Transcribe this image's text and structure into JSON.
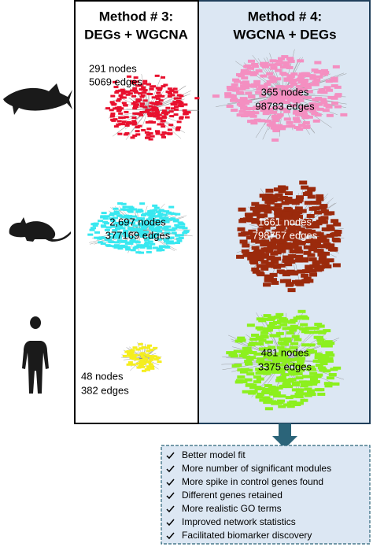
{
  "columns": [
    {
      "title_line1": "Method # 3:",
      "title_line2": "DEGs + WGCNA",
      "networks": [
        {
          "nodes": "291 nodes",
          "edges": "5069 edges"
        },
        {
          "nodes": "2,697 nodes",
          "edges": "377169 edges"
        },
        {
          "nodes": "48 nodes",
          "edges": "382 edges"
        }
      ]
    },
    {
      "title_line1": "Method # 4:",
      "title_line2": "WGCNA + DEGs",
      "networks": [
        {
          "nodes": "365 nodes",
          "edges": "98783 edges"
        },
        {
          "nodes": "1661 nodes",
          "edges": "798757 edges"
        },
        {
          "nodes": "481 nodes",
          "edges": "3375 edges"
        }
      ]
    }
  ],
  "benefits": [
    "Better model fit",
    "More number of significant modules",
    "More spike in control genes found",
    "Different genes retained",
    "More realistic GO terms",
    "Improved network statistics",
    "Facilitated biomarker discovery"
  ]
}
